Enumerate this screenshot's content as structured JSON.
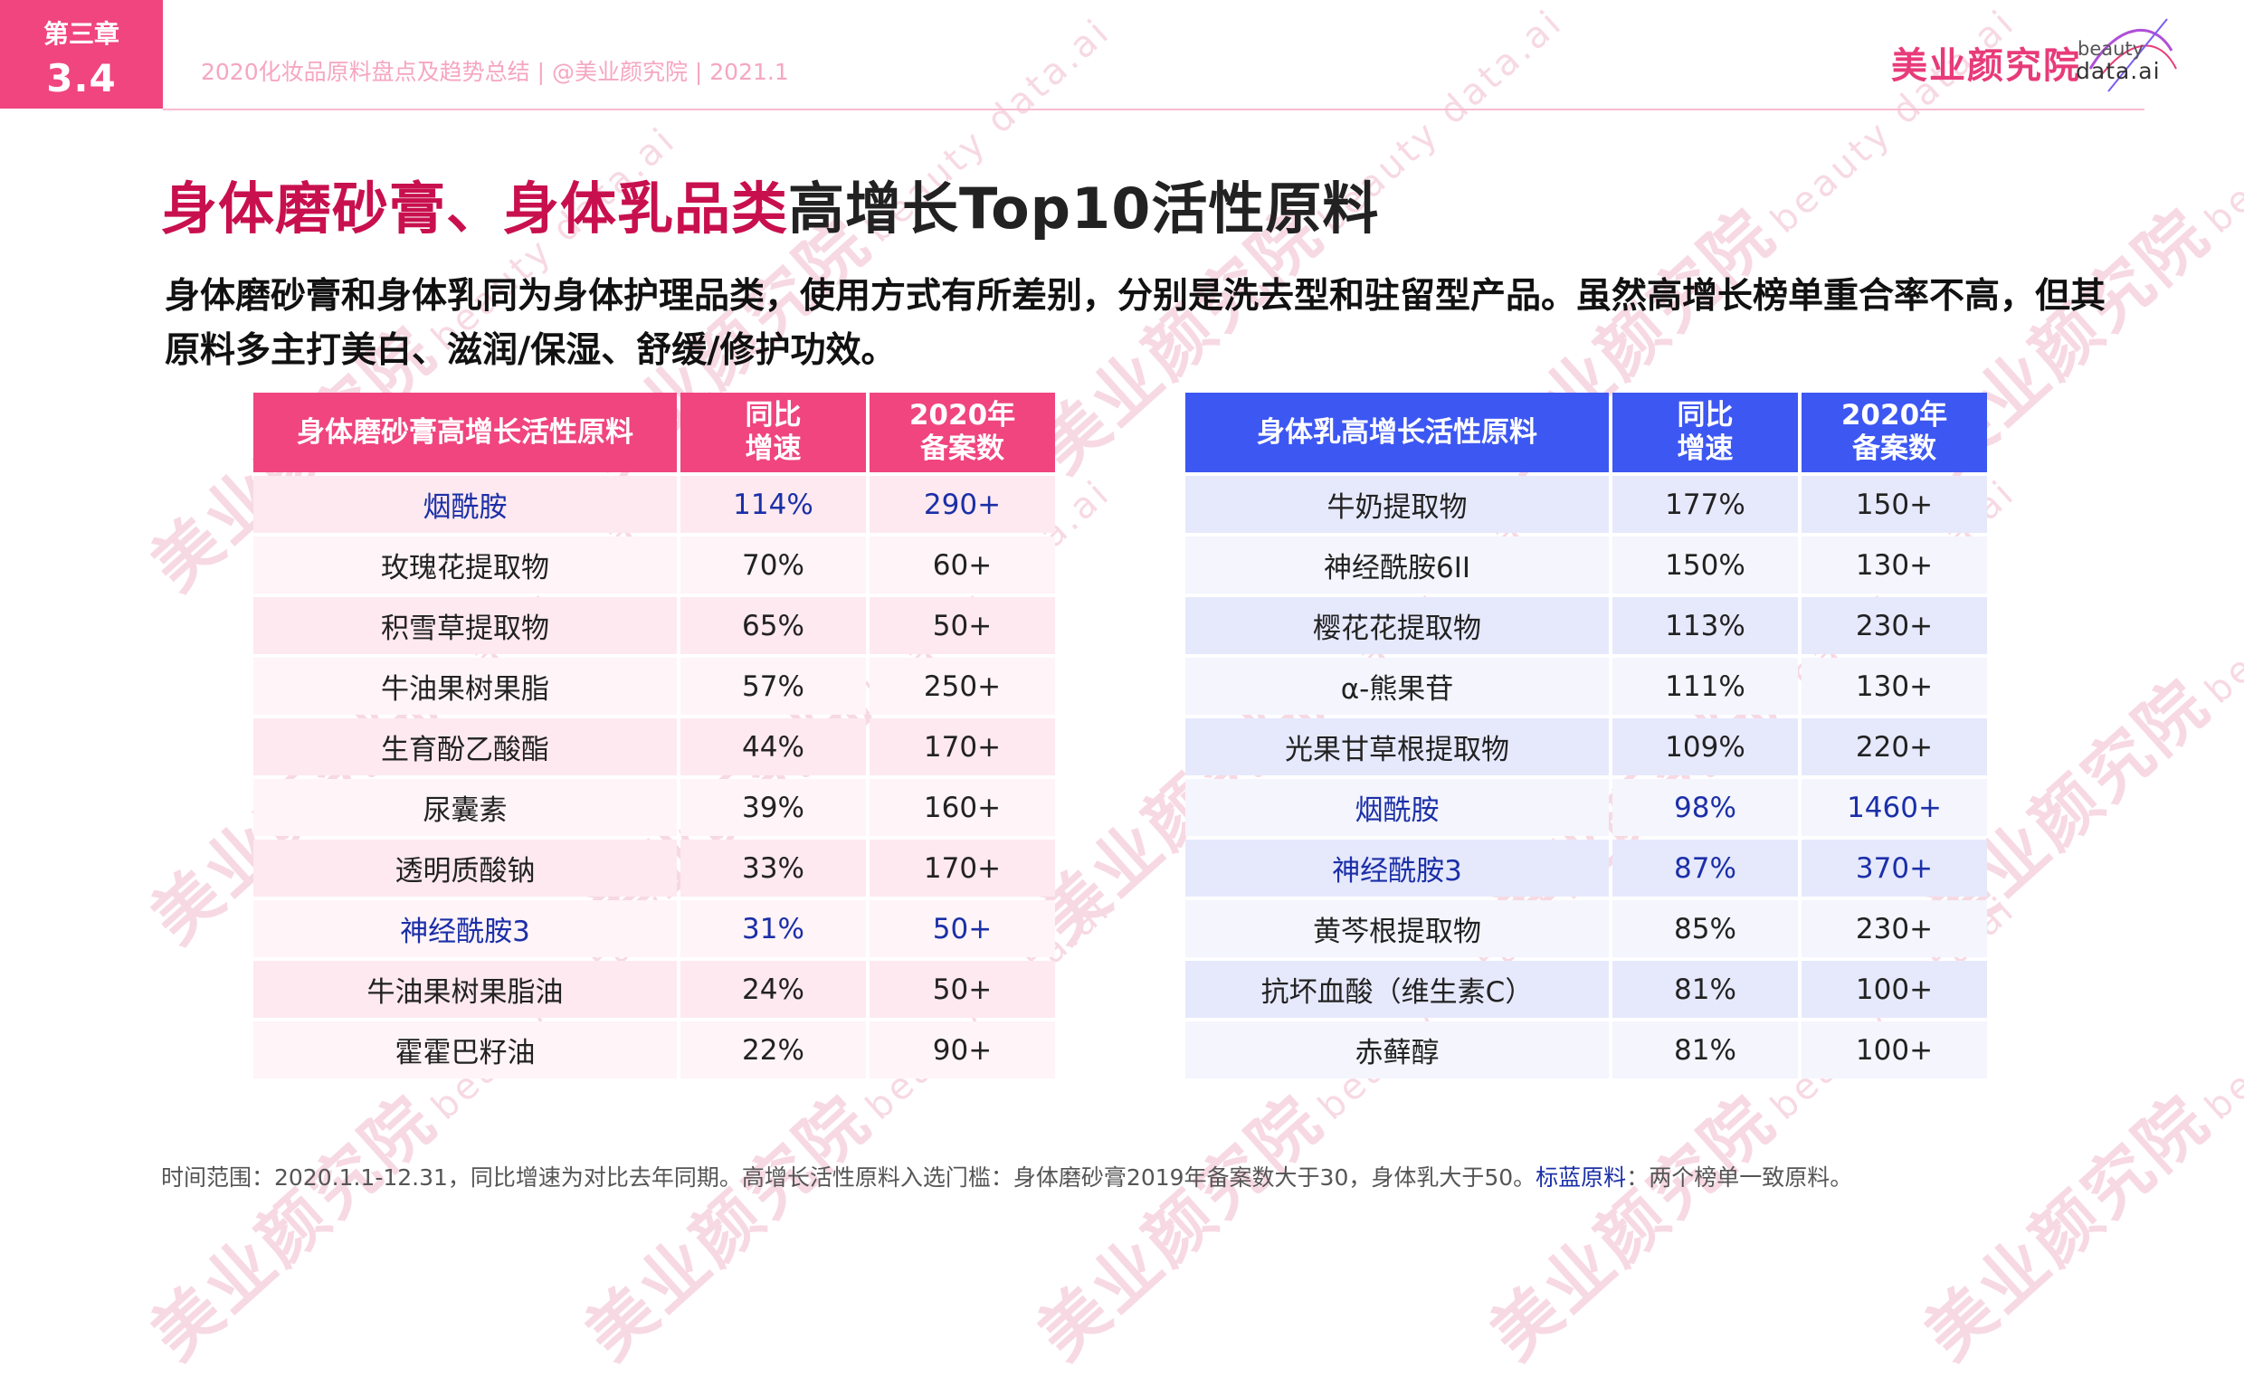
{
  "chapter": {
    "label": "第三章",
    "number": "3.4"
  },
  "header": {
    "subtitle": "2020化妆品原料盘点及趋势总结 | @美业颜究院 | 2021.1"
  },
  "logo": {
    "cn": "美业颜究院",
    "en_top": "beauty",
    "en_bottom": "data.ai"
  },
  "watermark": {
    "cn": "美业颜究院",
    "en": "beauty data.ai"
  },
  "title": {
    "accent": "身体磨砂膏、身体乳品类",
    "rest": "高增长Top10活性原料"
  },
  "description": "身体磨砂膏和身体乳同为身体护理品类，使用方式有所差别，分别是洗去型和驻留型产品。虽然高增长榜单重合率不高，但其原料多主打美白、滋润/保湿、舒缓/修护功效。",
  "colors": {
    "pink": "#f0457e",
    "blue": "#3d57f2",
    "highlight": "#1b2fa8",
    "title_accent": "#c8104f"
  },
  "table_scrub": {
    "headers": {
      "name": "身体磨砂膏高增长活性原料",
      "rate": "同比\n增速",
      "count": "2020年\n备案数"
    },
    "rows": [
      {
        "name": "烟酰胺",
        "rate": "114%",
        "count": "290+",
        "highlight": true
      },
      {
        "name": "玫瑰花提取物",
        "rate": "70%",
        "count": "60+",
        "highlight": false
      },
      {
        "name": "积雪草提取物",
        "rate": "65%",
        "count": "50+",
        "highlight": false
      },
      {
        "name": "牛油果树果脂",
        "rate": "57%",
        "count": "250+",
        "highlight": false
      },
      {
        "name": "生育酚乙酸酯",
        "rate": "44%",
        "count": "170+",
        "highlight": false
      },
      {
        "name": "尿囊素",
        "rate": "39%",
        "count": "160+",
        "highlight": false
      },
      {
        "name": "透明质酸钠",
        "rate": "33%",
        "count": "170+",
        "highlight": false
      },
      {
        "name": "神经酰胺3",
        "rate": "31%",
        "count": "50+",
        "highlight": true
      },
      {
        "name": "牛油果树果脂油",
        "rate": "24%",
        "count": "50+",
        "highlight": false
      },
      {
        "name": "霍霍巴籽油",
        "rate": "22%",
        "count": "90+",
        "highlight": false
      }
    ]
  },
  "table_lotion": {
    "headers": {
      "name": "身体乳高增长活性原料",
      "rate": "同比\n增速",
      "count": "2020年\n备案数"
    },
    "rows": [
      {
        "name": "牛奶提取物",
        "rate": "177%",
        "count": "150+",
        "highlight": false
      },
      {
        "name": "神经酰胺6II",
        "rate": "150%",
        "count": "130+",
        "highlight": false
      },
      {
        "name": "樱花花提取物",
        "rate": "113%",
        "count": "230+",
        "highlight": false
      },
      {
        "name": "α-熊果苷",
        "rate": "111%",
        "count": "130+",
        "highlight": false
      },
      {
        "name": "光果甘草根提取物",
        "rate": "109%",
        "count": "220+",
        "highlight": false
      },
      {
        "name": "烟酰胺",
        "rate": "98%",
        "count": "1460+",
        "highlight": true
      },
      {
        "name": "神经酰胺3",
        "rate": "87%",
        "count": "370+",
        "highlight": true
      },
      {
        "name": "黄芩根提取物",
        "rate": "85%",
        "count": "230+",
        "highlight": false
      },
      {
        "name": "抗坏血酸（维生素C）",
        "rate": "81%",
        "count": "100+",
        "highlight": false
      },
      {
        "name": "赤藓醇",
        "rate": "81%",
        "count": "100+",
        "highlight": false
      }
    ]
  },
  "footnote": {
    "part1": "时间范围：2020.1.1-12.31，同比增速为对比去年同期。高增长活性原料入选门槛：身体磨砂膏2019年备案数大于30，身体乳大于50。",
    "key": "标蓝原料",
    "part2": "：两个榜单一致原料。"
  }
}
